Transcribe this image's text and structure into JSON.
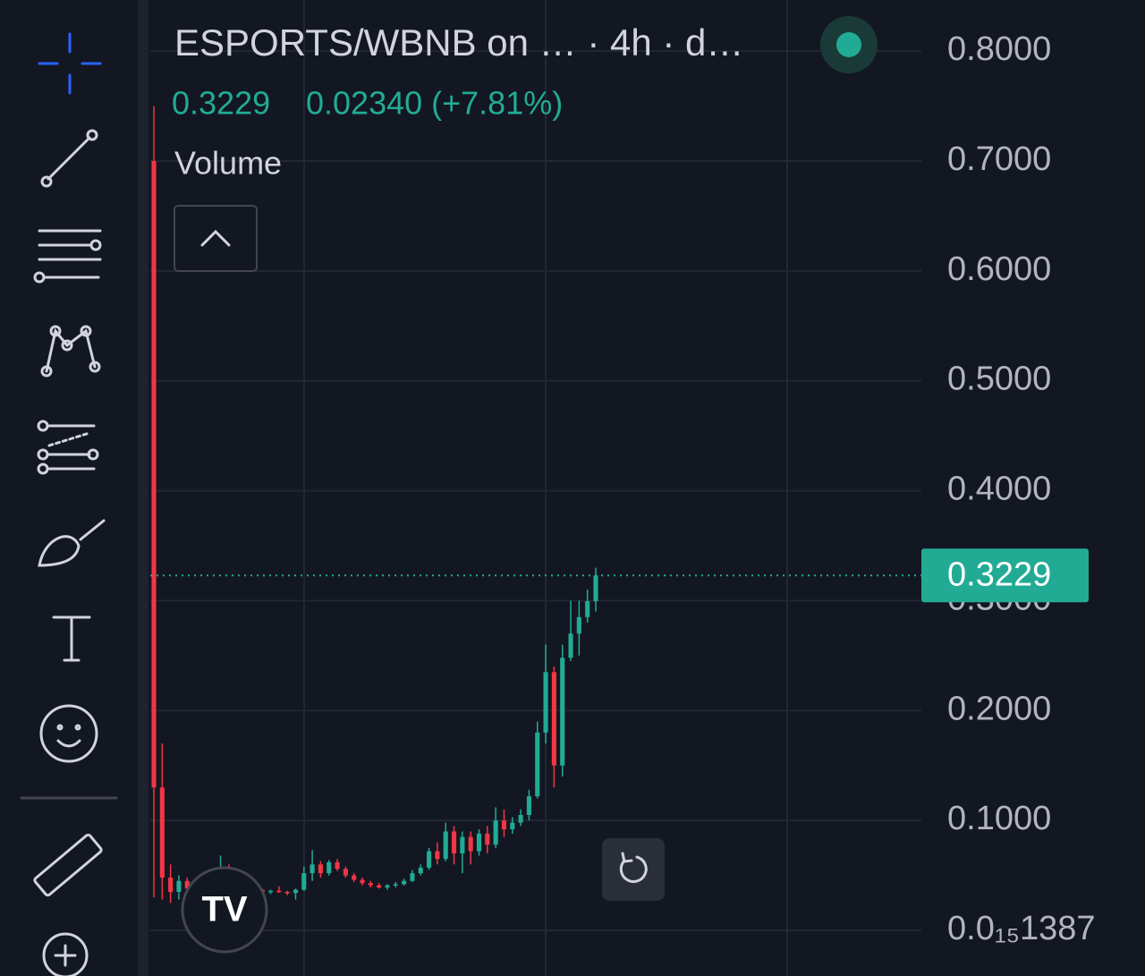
{
  "chart_data": {
    "type": "candlestick",
    "title": "ESPORTS/WBNB on … · 4h · d…",
    "last_price": 0.3229,
    "change": "0.02340 (+7.81%)",
    "indicator": "Volume",
    "ylim": [
      0,
      0.8465
    ],
    "yticks": [
      {
        "value": 1.387e-16,
        "label": "0.0₁₅1387"
      },
      {
        "value": 0.1,
        "label": "0.1000"
      },
      {
        "value": 0.2,
        "label": "0.2000"
      },
      {
        "value": 0.3,
        "label": "0.3000"
      },
      {
        "value": 0.4,
        "label": "0.4000"
      },
      {
        "value": 0.5,
        "label": "0.5000"
      },
      {
        "value": 0.6,
        "label": "0.6000"
      },
      {
        "value": 0.7,
        "label": "0.7000"
      },
      {
        "value": 0.8,
        "label": "0.8000"
      }
    ],
    "up_color": "#22ab94",
    "down_color": "#f23645",
    "ohlc": [
      [
        0.7,
        0.75,
        0.03,
        0.13
      ],
      [
        0.13,
        0.17,
        0.028,
        0.048
      ],
      [
        0.048,
        0.06,
        0.025,
        0.035
      ],
      [
        0.035,
        0.05,
        0.028,
        0.045
      ],
      [
        0.045,
        0.048,
        0.03,
        0.038
      ],
      [
        0.038,
        0.045,
        0.034,
        0.042
      ],
      [
        0.042,
        0.046,
        0.036,
        0.039
      ],
      [
        0.039,
        0.041,
        0.035,
        0.037
      ],
      [
        0.037,
        0.068,
        0.036,
        0.052
      ],
      [
        0.052,
        0.06,
        0.04,
        0.044
      ],
      [
        0.044,
        0.047,
        0.036,
        0.038
      ],
      [
        0.038,
        0.04,
        0.034,
        0.036
      ],
      [
        0.036,
        0.039,
        0.035,
        0.037
      ],
      [
        0.037,
        0.038,
        0.033,
        0.035
      ],
      [
        0.035,
        0.037,
        0.033,
        0.036
      ],
      [
        0.036,
        0.04,
        0.034,
        0.035
      ],
      [
        0.035,
        0.036,
        0.032,
        0.034
      ],
      [
        0.034,
        0.038,
        0.028,
        0.037
      ],
      [
        0.037,
        0.058,
        0.036,
        0.052
      ],
      [
        0.052,
        0.073,
        0.045,
        0.06
      ],
      [
        0.06,
        0.063,
        0.048,
        0.052
      ],
      [
        0.052,
        0.064,
        0.05,
        0.062
      ],
      [
        0.062,
        0.065,
        0.054,
        0.056
      ],
      [
        0.056,
        0.058,
        0.048,
        0.05
      ],
      [
        0.05,
        0.052,
        0.044,
        0.046
      ],
      [
        0.046,
        0.048,
        0.041,
        0.043
      ],
      [
        0.043,
        0.045,
        0.039,
        0.041
      ],
      [
        0.041,
        0.043,
        0.038,
        0.039
      ],
      [
        0.039,
        0.042,
        0.037,
        0.041
      ],
      [
        0.041,
        0.044,
        0.039,
        0.042
      ],
      [
        0.042,
        0.047,
        0.041,
        0.045
      ],
      [
        0.045,
        0.055,
        0.044,
        0.052
      ],
      [
        0.052,
        0.06,
        0.05,
        0.057
      ],
      [
        0.057,
        0.075,
        0.055,
        0.072
      ],
      [
        0.072,
        0.08,
        0.06,
        0.065
      ],
      [
        0.065,
        0.098,
        0.063,
        0.09
      ],
      [
        0.09,
        0.095,
        0.06,
        0.07
      ],
      [
        0.07,
        0.09,
        0.052,
        0.085
      ],
      [
        0.085,
        0.09,
        0.06,
        0.072
      ],
      [
        0.072,
        0.092,
        0.068,
        0.088
      ],
      [
        0.088,
        0.095,
        0.07,
        0.078
      ],
      [
        0.078,
        0.112,
        0.075,
        0.1
      ],
      [
        0.1,
        0.11,
        0.085,
        0.092
      ],
      [
        0.092,
        0.103,
        0.088,
        0.098
      ],
      [
        0.098,
        0.11,
        0.095,
        0.105
      ],
      [
        0.105,
        0.128,
        0.1,
        0.122
      ],
      [
        0.122,
        0.19,
        0.12,
        0.18
      ],
      [
        0.18,
        0.26,
        0.17,
        0.235
      ],
      [
        0.235,
        0.24,
        0.13,
        0.15
      ],
      [
        0.15,
        0.26,
        0.14,
        0.248
      ],
      [
        0.248,
        0.3,
        0.245,
        0.27
      ],
      [
        0.27,
        0.3,
        0.25,
        0.285
      ],
      [
        0.285,
        0.31,
        0.28,
        0.2995
      ],
      [
        0.2995,
        0.33,
        0.29,
        0.3229
      ]
    ]
  }
}
